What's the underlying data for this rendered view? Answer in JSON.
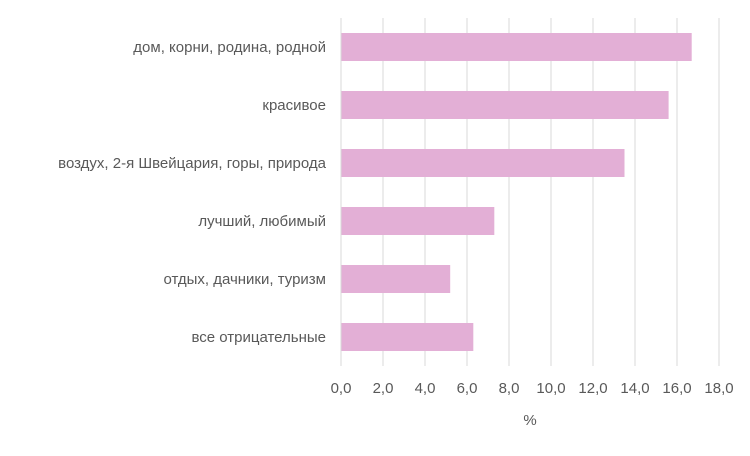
{
  "chart_data": {
    "type": "bar",
    "orientation": "horizontal",
    "categories": [
      "дом, корни, родина, родной",
      "красивое",
      "воздух, 2-я Швейцария, горы, природа",
      "лучший,  любимый",
      "отдых, дачники, туризм",
      "все отрицательные"
    ],
    "values": [
      16.7,
      15.6,
      13.5,
      7.3,
      5.2,
      6.3
    ],
    "xlabel": "%",
    "ylabel": "",
    "xlim": [
      0,
      18
    ],
    "ticks": [
      "0,0",
      "2,0",
      "4,0",
      "6,0",
      "8,0",
      "10,0",
      "12,0",
      "14,0",
      "16,0",
      "18,0"
    ],
    "grid": "vertical",
    "legend": "none",
    "bar_color": "#e3afd6",
    "grid_color": "#d9d9d9"
  }
}
